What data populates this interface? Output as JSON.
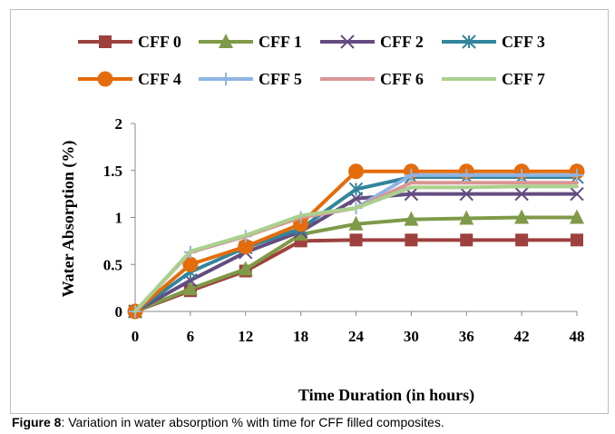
{
  "chart_data": {
    "type": "line",
    "x": [
      0,
      6,
      12,
      18,
      24,
      30,
      36,
      42,
      48
    ],
    "xlabel": "Time Duration (in hours)",
    "ylabel": "Water Absorption (%)",
    "ylim": [
      0,
      2
    ],
    "yticks": [
      0,
      0.5,
      1,
      1.5,
      2
    ],
    "ytick_labels": [
      "0",
      "0.5",
      "1",
      "1.5",
      "2"
    ],
    "xtick_labels": [
      "0",
      "6",
      "12",
      "18",
      "24",
      "30",
      "36",
      "42",
      "48"
    ],
    "grid": false,
    "legend_position": "top",
    "series": [
      {
        "name": "CFF 0",
        "color": "#9e413e",
        "marker": "square",
        "values": [
          0,
          0.22,
          0.43,
          0.75,
          0.76,
          0.76,
          0.76,
          0.76,
          0.76
        ]
      },
      {
        "name": "CFF 1",
        "color": "#7f9a48",
        "marker": "triangle",
        "values": [
          0,
          0.24,
          0.45,
          0.82,
          0.93,
          0.98,
          0.99,
          1.0,
          1.0
        ]
      },
      {
        "name": "CFF 2",
        "color": "#644c81",
        "marker": "x",
        "values": [
          0,
          0.33,
          0.63,
          0.85,
          1.2,
          1.25,
          1.25,
          1.25,
          1.25
        ]
      },
      {
        "name": "CFF 3",
        "color": "#31859c",
        "marker": "asterisk",
        "values": [
          0,
          0.42,
          0.68,
          0.88,
          1.3,
          1.43,
          1.43,
          1.43,
          1.43
        ]
      },
      {
        "name": "CFF 4",
        "color": "#e46c0a",
        "marker": "circle",
        "values": [
          0,
          0.5,
          0.69,
          0.93,
          1.49,
          1.49,
          1.49,
          1.49,
          1.49
        ]
      },
      {
        "name": "CFF 5",
        "color": "#8eb4e3",
        "marker": "plus",
        "values": [
          0,
          0.63,
          0.8,
          1.0,
          1.1,
          1.45,
          1.45,
          1.45,
          1.45
        ]
      },
      {
        "name": "CFF 6",
        "color": "#d99694",
        "marker": "none",
        "values": [
          0,
          0.63,
          0.8,
          1.0,
          1.1,
          1.37,
          1.37,
          1.37,
          1.37
        ]
      },
      {
        "name": "CFF 7",
        "color": "#a9d18e",
        "marker": "none",
        "values": [
          0,
          0.64,
          0.81,
          1.02,
          1.1,
          1.32,
          1.32,
          1.33,
          1.33
        ]
      }
    ]
  },
  "caption": {
    "label": "Figure 8",
    "text": ": Variation in water absorption % with time for CFF filled composites."
  }
}
